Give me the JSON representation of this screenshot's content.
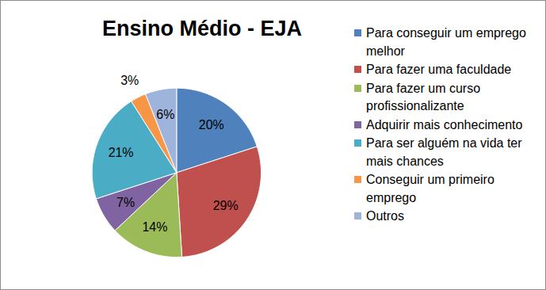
{
  "chart_data": {
    "type": "pie",
    "title": "Ensino Médio - EJA",
    "categories": [
      "Para conseguir um emprego melhor",
      "Para fazer uma faculdade",
      "Para fazer um curso profissionalizante",
      "Adquirir mais conhecimento",
      "Para ser alguém na vida ter mais chances",
      "Conseguir um primeiro emprego",
      "Outros"
    ],
    "values": [
      20,
      29,
      14,
      7,
      21,
      3,
      6
    ],
    "value_labels": [
      "20%",
      "29%",
      "14%",
      "7%",
      "21%",
      "3%",
      "6%"
    ],
    "colors": [
      "#4f81bd",
      "#c0504d",
      "#9bbb59",
      "#8064a2",
      "#4bacc6",
      "#f79646",
      "#9fb4da"
    ],
    "data_labels": true,
    "legend": "right"
  }
}
